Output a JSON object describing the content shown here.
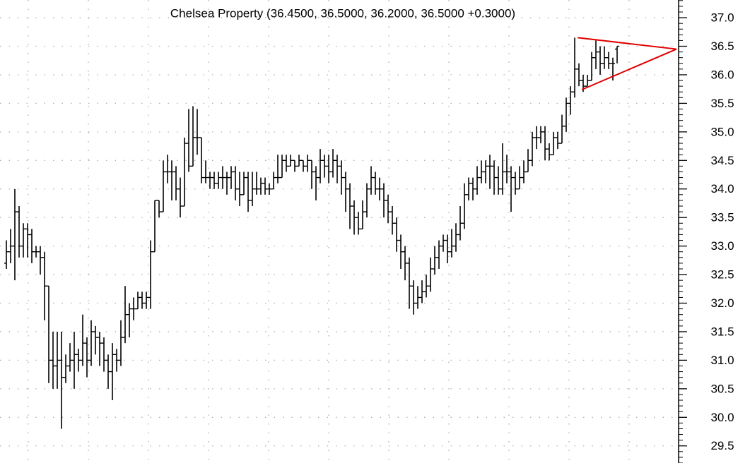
{
  "chart_data": {
    "type": "ohlc",
    "title": "Chelsea Property (36.4500, 36.5000, 36.2000, 36.5000 +0.3000)",
    "color": "#000000",
    "grid": true,
    "ylim": [
      29.2,
      37.31
    ],
    "yticks": [
      {
        "value": 29.5,
        "label": "29.5"
      },
      {
        "value": 30,
        "label": "30.0"
      },
      {
        "value": 30.5,
        "label": "30.5"
      },
      {
        "value": 31,
        "label": "31.0"
      },
      {
        "value": 31.5,
        "label": "31.5"
      },
      {
        "value": 32,
        "label": "32.0"
      },
      {
        "value": 32.5,
        "label": "32.5"
      },
      {
        "value": 33,
        "label": "33.0"
      },
      {
        "value": 33.5,
        "label": "33.5"
      },
      {
        "value": 34,
        "label": "34.0"
      },
      {
        "value": 34.5,
        "label": "34.5"
      },
      {
        "value": 35,
        "label": "35.0"
      },
      {
        "value": 35.5,
        "label": "35.5"
      },
      {
        "value": 36,
        "label": "36.0"
      },
      {
        "value": 36.5,
        "label": "36.5"
      },
      {
        "value": 37,
        "label": "37.0"
      }
    ],
    "open": [
      32.7,
      32.9,
      33.0,
      33.6,
      33.0,
      33.3,
      33.2,
      32.9,
      32.9,
      32.8,
      32.3,
      31.0,
      30.9,
      31.0,
      30.7,
      30.9,
      31.0,
      31.1,
      31.0,
      31.3,
      31.0,
      31.5,
      31.4,
      31.3,
      31.0,
      30.8,
      31.1,
      31.0,
      31.4,
      31.8,
      31.9,
      31.9,
      32.1,
      32.0,
      32.1,
      32.9,
      33.8,
      33.6,
      34.3,
      34.3,
      34.3,
      34.0,
      33.7,
      34.8,
      34.4,
      34.9,
      34.9,
      34.2,
      34.2,
      34.2,
      34.1,
      34.2,
      34.2,
      34.2,
      34.3,
      34.0,
      33.9,
      34.2,
      33.8,
      34.0,
      34.0,
      34.1,
      34.0,
      34.0,
      34.2,
      34.2,
      34.5,
      34.4,
      34.5,
      34.4,
      34.5,
      34.4,
      34.5,
      34.3,
      34.2,
      34.5,
      34.4,
      34.3,
      34.5,
      34.4,
      34.2,
      34.0,
      33.7,
      33.5,
      33.3,
      33.6,
      34.0,
      34.2,
      34.0,
      34.0,
      33.8,
      33.6,
      33.4,
      33.1,
      32.9,
      32.7,
      32.3,
      32.0,
      32.1,
      32.2,
      32.3,
      32.6,
      32.8,
      33.0,
      33.1,
      32.9,
      33.0,
      33.2,
      33.4,
      33.9,
      34.1,
      34.0,
      34.2,
      34.3,
      34.4,
      34.4,
      34.2,
      34.0,
      34.3,
      34.3,
      34.2,
      34.0,
      34.2,
      34.3,
      34.5,
      34.9,
      34.9,
      35.0,
      34.7,
      34.6,
      34.9,
      34.8,
      35.1,
      35.5,
      35.7,
      36.1,
      35.9,
      35.8,
      35.9,
      36.3,
      36.4,
      36.2,
      36.3,
      36.2,
      36.45
    ],
    "high": [
      33.1,
      33.3,
      34.0,
      33.7,
      33.4,
      33.4,
      33.3,
      33.0,
      33.0,
      32.9,
      32.3,
      31.5,
      31.5,
      31.5,
      31.1,
      31.3,
      31.5,
      31.2,
      31.8,
      31.4,
      31.7,
      31.6,
      31.5,
      31.4,
      31.1,
      31.3,
      31.2,
      31.7,
      32.3,
      32.0,
      32.1,
      32.2,
      32.2,
      32.2,
      33.1,
      33.8,
      33.8,
      34.5,
      34.6,
      34.5,
      34.4,
      34.2,
      34.9,
      35.4,
      35.45,
      35.4,
      34.9,
      34.5,
      34.3,
      34.3,
      34.3,
      34.4,
      34.3,
      34.4,
      34.4,
      34.3,
      34.3,
      34.3,
      34.3,
      34.3,
      34.2,
      34.2,
      34.1,
      34.3,
      34.6,
      34.6,
      34.6,
      34.6,
      34.5,
      34.6,
      34.5,
      34.6,
      34.5,
      34.4,
      34.7,
      34.6,
      34.6,
      34.7,
      34.6,
      34.5,
      34.3,
      34.1,
      33.8,
      33.6,
      33.8,
      34.1,
      34.4,
      34.3,
      34.2,
      34.1,
      33.9,
      33.7,
      33.5,
      33.2,
      33.0,
      32.8,
      32.4,
      32.3,
      32.4,
      32.5,
      32.8,
      33.0,
      33.1,
      33.2,
      33.2,
      33.3,
      33.4,
      33.7,
      34.1,
      34.2,
      34.2,
      34.4,
      34.5,
      34.5,
      34.6,
      34.5,
      34.4,
      34.8,
      34.6,
      34.4,
      34.3,
      34.4,
      34.5,
      34.7,
      35.0,
      35.1,
      35.1,
      35.1,
      34.8,
      35.0,
      35.0,
      35.3,
      35.6,
      35.8,
      36.65,
      36.2,
      36.0,
      36.0,
      36.4,
      36.6,
      36.5,
      36.5,
      36.4,
      36.3,
      36.5
    ],
    "low": [
      32.6,
      32.7,
      32.4,
      32.8,
      32.8,
      32.8,
      32.7,
      32.8,
      32.5,
      31.7,
      30.6,
      30.5,
      30.5,
      29.8,
      30.6,
      30.8,
      30.5,
      30.8,
      30.9,
      30.7,
      30.9,
      31.1,
      30.9,
      30.8,
      30.5,
      30.3,
      30.8,
      30.9,
      31.3,
      31.4,
      31.7,
      31.9,
      31.9,
      31.9,
      31.9,
      32.9,
      33.5,
      33.6,
      34.1,
      33.8,
      33.8,
      33.5,
      33.7,
      34.3,
      34.4,
      34.6,
      34.1,
      34.1,
      34.0,
      34.0,
      34.0,
      34.0,
      33.9,
      34.0,
      33.8,
      33.7,
      33.9,
      33.6,
      33.7,
      33.9,
      33.9,
      33.9,
      33.9,
      34.0,
      34.1,
      34.2,
      34.3,
      34.4,
      34.3,
      34.4,
      34.3,
      34.3,
      34.0,
      33.8,
      34.1,
      34.2,
      34.1,
      34.2,
      34.1,
      33.9,
      33.6,
      33.3,
      33.2,
      33.2,
      33.3,
      33.5,
      33.9,
      33.9,
      33.8,
      33.5,
      33.4,
      33.2,
      32.9,
      32.6,
      32.4,
      31.9,
      31.8,
      31.9,
      32.0,
      32.1,
      32.2,
      32.5,
      32.6,
      32.9,
      32.7,
      32.8,
      32.9,
      33.1,
      33.3,
      33.8,
      33.8,
      33.9,
      34.1,
      34.1,
      34.0,
      33.9,
      33.9,
      33.9,
      34.1,
      33.6,
      33.9,
      34.0,
      34.1,
      34.3,
      34.4,
      34.7,
      34.8,
      34.5,
      34.5,
      34.6,
      34.7,
      34.8,
      35.0,
      35.3,
      35.6,
      35.8,
      35.7,
      35.8,
      35.9,
      36.1,
      36.0,
      36.1,
      36.1,
      35.9,
      36.2
    ],
    "close": [
      32.9,
      33.0,
      33.6,
      33.0,
      33.3,
      33.2,
      32.9,
      32.9,
      32.8,
      32.3,
      31.0,
      30.9,
      31.0,
      30.7,
      30.9,
      31.0,
      31.1,
      31.0,
      31.3,
      31.0,
      31.5,
      31.4,
      31.3,
      31.0,
      30.8,
      31.1,
      31.0,
      31.4,
      31.8,
      31.9,
      31.9,
      32.1,
      32.0,
      32.1,
      32.9,
      33.8,
      33.6,
      34.3,
      34.3,
      34.3,
      34.0,
      33.7,
      34.8,
      34.4,
      34.9,
      34.9,
      34.2,
      34.2,
      34.2,
      34.1,
      34.2,
      34.2,
      34.2,
      34.3,
      34.0,
      33.9,
      34.2,
      33.8,
      34.0,
      34.0,
      34.1,
      34.0,
      34.0,
      34.2,
      34.2,
      34.5,
      34.4,
      34.5,
      34.4,
      34.5,
      34.4,
      34.5,
      34.3,
      34.2,
      34.5,
      34.4,
      34.3,
      34.5,
      34.4,
      34.2,
      34.0,
      33.7,
      33.5,
      33.3,
      33.6,
      34.0,
      34.2,
      34.0,
      34.0,
      33.8,
      33.6,
      33.4,
      33.1,
      32.9,
      32.7,
      32.3,
      32.0,
      32.1,
      32.2,
      32.3,
      32.6,
      32.8,
      33.0,
      33.1,
      32.9,
      33.0,
      33.2,
      33.4,
      33.9,
      34.1,
      34.0,
      34.2,
      34.3,
      34.4,
      34.4,
      34.2,
      34.0,
      34.3,
      34.3,
      34.2,
      34.0,
      34.2,
      34.3,
      34.5,
      34.9,
      34.9,
      35.0,
      34.7,
      34.6,
      34.9,
      34.8,
      35.1,
      35.5,
      35.7,
      36.1,
      35.9,
      35.8,
      35.9,
      36.3,
      36.4,
      36.2,
      36.3,
      36.2,
      36.2,
      36.5
    ],
    "trendlines": [
      {
        "color": "#e00000",
        "x": [
          134.7,
          158
        ],
        "y": [
          36.65,
          36.45
        ]
      },
      {
        "color": "#e00000",
        "x": [
          135.7,
          158
        ],
        "y": [
          35.74,
          36.45
        ]
      }
    ]
  }
}
